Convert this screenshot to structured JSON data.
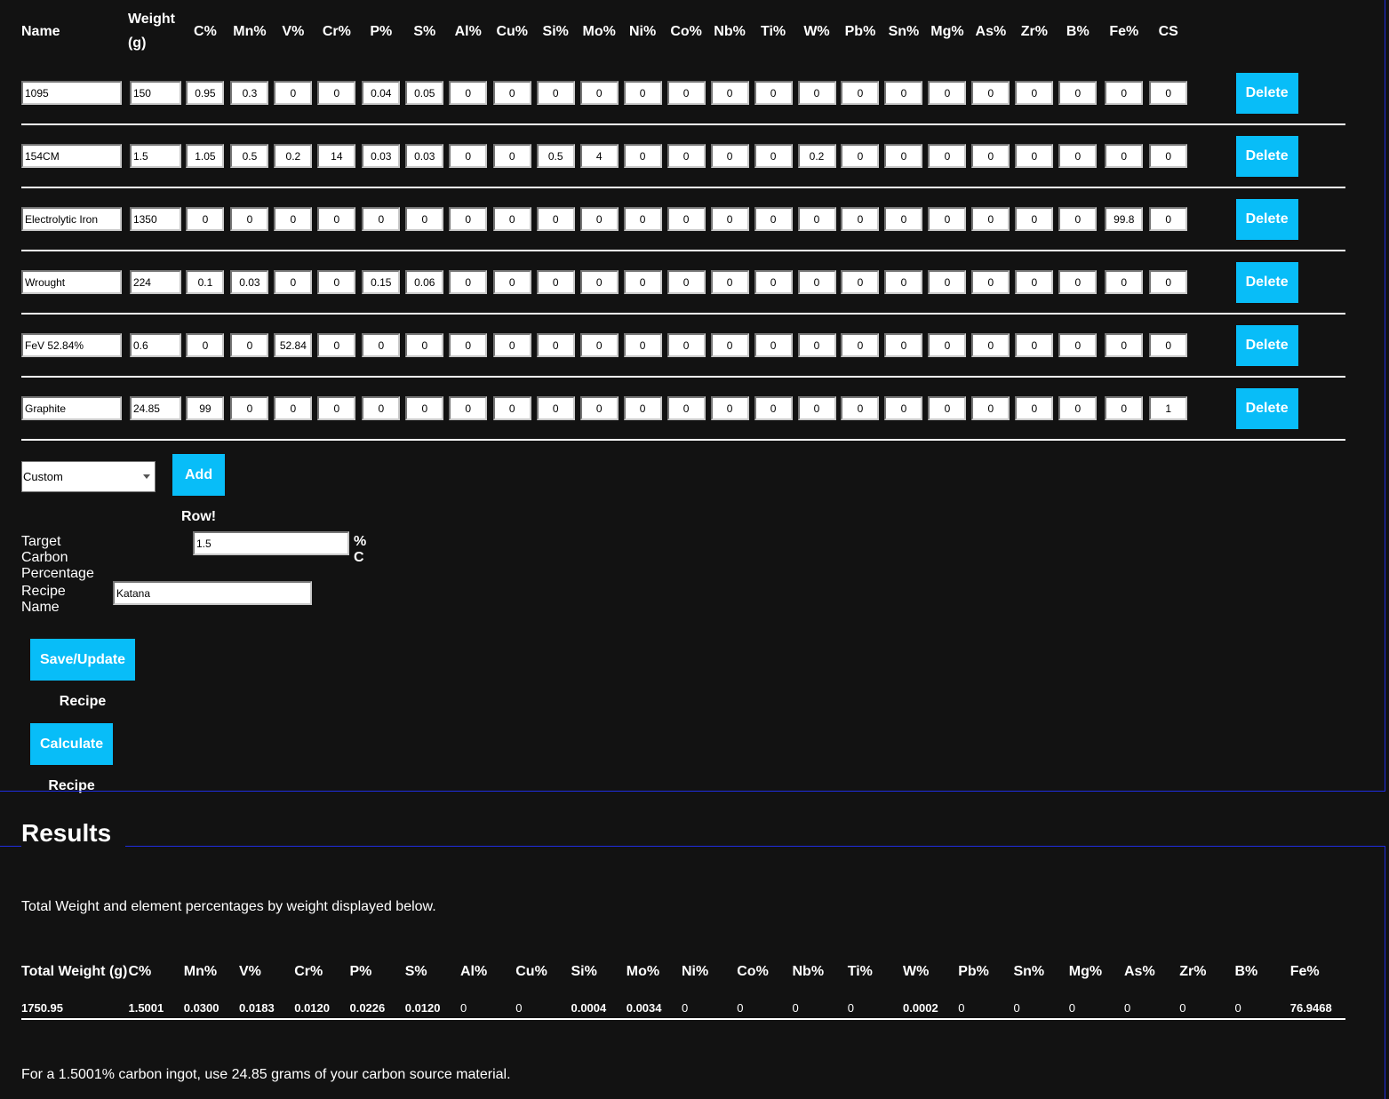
{
  "ingredients": {
    "headers": [
      "Name",
      "Weight (g)",
      "C%",
      "Mn%",
      "V%",
      "Cr%",
      "P%",
      "S%",
      "Al%",
      "Cu%",
      "Si%",
      "Mo%",
      "Ni%",
      "Co%",
      "Nb%",
      "Ti%",
      "W%",
      "Pb%",
      "Sn%",
      "Mg%",
      "As%",
      "Zr%",
      "B%",
      "Fe%",
      "CS"
    ],
    "rows": [
      {
        "name": "1095",
        "weight": "150",
        "values": [
          "0.95",
          "0.3",
          "0",
          "0",
          "0.04",
          "0.05",
          "0",
          "0",
          "0",
          "0",
          "0",
          "0",
          "0",
          "0",
          "0",
          "0",
          "0",
          "0",
          "0",
          "0",
          "0",
          "0"
        ],
        "cs": "0"
      },
      {
        "name": "154CM",
        "weight": "1.5",
        "values": [
          "1.05",
          "0.5",
          "0.2",
          "14",
          "0.03",
          "0.03",
          "0",
          "0",
          "0.5",
          "4",
          "0",
          "0",
          "0",
          "0",
          "0.2",
          "0",
          "0",
          "0",
          "0",
          "0",
          "0",
          "0"
        ],
        "cs": "0"
      },
      {
        "name": "Electrolytic Iron",
        "weight": "1350",
        "values": [
          "0",
          "0",
          "0",
          "0",
          "0",
          "0",
          "0",
          "0",
          "0",
          "0",
          "0",
          "0",
          "0",
          "0",
          "0",
          "0",
          "0",
          "0",
          "0",
          "0",
          "0",
          "99.8"
        ],
        "cs": "0"
      },
      {
        "name": "Wrought",
        "weight": "224",
        "values": [
          "0.1",
          "0.03",
          "0",
          "0",
          "0.15",
          "0.06",
          "0",
          "0",
          "0",
          "0",
          "0",
          "0",
          "0",
          "0",
          "0",
          "0",
          "0",
          "0",
          "0",
          "0",
          "0",
          "0"
        ],
        "cs": "0"
      },
      {
        "name": "FeV 52.84%",
        "weight": "0.6",
        "values": [
          "0",
          "0",
          "52.84",
          "0",
          "0",
          "0",
          "0",
          "0",
          "0",
          "0",
          "0",
          "0",
          "0",
          "0",
          "0",
          "0",
          "0",
          "0",
          "0",
          "0",
          "0",
          "0"
        ],
        "cs": "0"
      },
      {
        "name": "Graphite",
        "weight": "24.85",
        "values": [
          "99",
          "0",
          "0",
          "0",
          "0",
          "0",
          "0",
          "0",
          "0",
          "0",
          "0",
          "0",
          "0",
          "0",
          "0",
          "0",
          "0",
          "0",
          "0",
          "0",
          "0",
          "0"
        ],
        "cs": "1"
      }
    ],
    "delete_label": "Delete"
  },
  "controls": {
    "preset_selected": "Custom",
    "add_row_label": "Add Row!",
    "target_carbon_label": "Target Carbon Percentage",
    "target_carbon_value": "1.5",
    "target_carbon_unit": "% C",
    "recipe_name_label": "Recipe Name",
    "recipe_name_value": "Katana",
    "save_label": "Save/Update Recipe",
    "calculate_label": "Calculate Recipe"
  },
  "results": {
    "title": "Results",
    "description": "Total Weight and element percentages by weight displayed below.",
    "headers": [
      "Total Weight (g)",
      "C%",
      "Mn%",
      "V%",
      "Cr%",
      "P%",
      "S%",
      "Al%",
      "Cu%",
      "Si%",
      "Mo%",
      "Ni%",
      "Co%",
      "Nb%",
      "Ti%",
      "W%",
      "Pb%",
      "Sn%",
      "Mg%",
      "As%",
      "Zr%",
      "B%",
      "Fe%"
    ],
    "values": [
      "1750.95",
      "1.5001",
      "0.0300",
      "0.0183",
      "0.0120",
      "0.0226",
      "0.0120",
      "0",
      "0",
      "0.0004",
      "0.0034",
      "0",
      "0",
      "0",
      "0",
      "0.0002",
      "0",
      "0",
      "0",
      "0",
      "0",
      "0",
      "76.9468"
    ],
    "summary": "For a 1.5001% carbon ingot, use 24.85 grams of your carbon source material."
  },
  "colors": {
    "background": "#121212",
    "accent": "#08bdf8",
    "section_line": "#1f2de0"
  }
}
